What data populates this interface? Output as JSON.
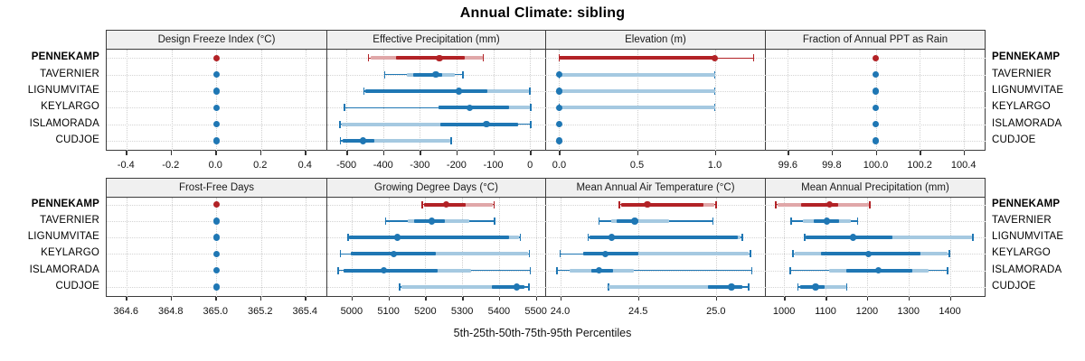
{
  "figure": {
    "title": "Annual Climate: sibling",
    "axis_caption": "5th-25th-50th-75th-95th Percentiles"
  },
  "sites": [
    "PENNEKAMP",
    "TAVERNIER",
    "LIGNUMVITAE",
    "KEYLARGO",
    "ISLAMORADA",
    "CUDJOE"
  ],
  "highlight_site": "PENNEKAMP",
  "colors": {
    "blue": "#1f77b4",
    "blue_light": "#a5c9e1",
    "red": "#b22226",
    "red_light": "#e0a7a8",
    "grid": "#d0d0d0",
    "panel_border": "#3c3c3c",
    "header_bg": "#f0f0f0"
  },
  "chart_data": [
    {
      "type": "dotplot-percentiles",
      "title": "Design Freeze Index (°C)",
      "grid_row": 0,
      "grid_col": 0,
      "xlim": [
        -0.49,
        0.5
      ],
      "ticks": [
        -0.4,
        -0.2,
        0.0,
        0.2,
        0.4
      ],
      "tick_labels": [
        "-0.4",
        "-0.2",
        "0.0",
        "0.2",
        "0.4"
      ],
      "series": [
        {
          "site": "PENNEKAMP",
          "lo": 0,
          "hi": 0,
          "light": null,
          "dark": null,
          "med": 0
        },
        {
          "site": "TAVERNIER",
          "lo": 0,
          "hi": 0,
          "light": null,
          "dark": null,
          "med": 0
        },
        {
          "site": "LIGNUMVITAE",
          "lo": 0,
          "hi": 0,
          "light": null,
          "dark": null,
          "med": 0
        },
        {
          "site": "KEYLARGO",
          "lo": 0,
          "hi": 0,
          "light": null,
          "dark": null,
          "med": 0
        },
        {
          "site": "ISLAMORADA",
          "lo": 0,
          "hi": 0,
          "light": null,
          "dark": null,
          "med": 0
        },
        {
          "site": "CUDJOE",
          "lo": 0,
          "hi": 0,
          "light": null,
          "dark": null,
          "med": 0
        }
      ]
    },
    {
      "type": "dotplot-percentiles",
      "title": "Effective Precipitation (mm)",
      "grid_row": 0,
      "grid_col": 1,
      "xlim": [
        -552,
        44
      ],
      "ticks": [
        -500,
        -400,
        -300,
        -200,
        -100,
        0
      ],
      "tick_labels": [
        "-500",
        "-400",
        "-300",
        "-200",
        "-100",
        "0"
      ],
      "series": [
        {
          "site": "PENNEKAMP",
          "lo": -440,
          "hi": -127,
          "light": [
            -435,
            -128
          ],
          "dark": [
            -365,
            -177
          ],
          "med": -246
        },
        {
          "site": "TAVERNIER",
          "lo": -396,
          "hi": -183,
          "light": [
            -335,
            -205
          ],
          "dark": [
            -318,
            -238
          ],
          "med": -257
        },
        {
          "site": "LIGNUMVITAE",
          "lo": -452,
          "hi": 0,
          "light": [
            -448,
            -2
          ],
          "dark": [
            -448,
            -116
          ],
          "med": -194
        },
        {
          "site": "KEYLARGO",
          "lo": -505,
          "hi": 2,
          "light": [
            -250,
            0
          ],
          "dark": [
            -250,
            -57
          ],
          "med": -164
        },
        {
          "site": "ISLAMORADA",
          "lo": -518,
          "hi": 2,
          "light": [
            -512,
            -33
          ],
          "dark": [
            -243,
            -33
          ],
          "med": -119
        },
        {
          "site": "CUDJOE",
          "lo": -516,
          "hi": -214,
          "light": [
            -511,
            -216
          ],
          "dark": [
            -511,
            -423
          ],
          "med": -455
        }
      ]
    },
    {
      "type": "dotplot-percentiles",
      "title": "Elevation (m)",
      "grid_row": 0,
      "grid_col": 2,
      "xlim": [
        -0.084,
        1.328
      ],
      "ticks": [
        0.0,
        0.5,
        1.0
      ],
      "tick_labels": [
        "0.0",
        "0.5",
        "1.0"
      ],
      "series": [
        {
          "site": "PENNEKAMP",
          "lo": 0,
          "hi": 1.25,
          "light": [
            0,
            1.0
          ],
          "dark": [
            0,
            1.0
          ],
          "med": 1.0
        },
        {
          "site": "TAVERNIER",
          "lo": 0,
          "hi": 1.0,
          "light": [
            0,
            1.0
          ],
          "dark": null,
          "med": 0
        },
        {
          "site": "LIGNUMVITAE",
          "lo": 0,
          "hi": 1.0,
          "light": [
            0,
            1.0
          ],
          "dark": null,
          "med": 0
        },
        {
          "site": "KEYLARGO",
          "lo": 0,
          "hi": 1.0,
          "light": [
            0,
            1.0
          ],
          "dark": null,
          "med": 0
        },
        {
          "site": "ISLAMORADA",
          "lo": 0,
          "hi": 0,
          "light": null,
          "dark": null,
          "med": 0
        },
        {
          "site": "CUDJOE",
          "lo": 0,
          "hi": 0,
          "light": null,
          "dark": null,
          "med": 0
        }
      ]
    },
    {
      "type": "dotplot-percentiles",
      "title": "Fraction of Annual PPT as Rain",
      "grid_row": 0,
      "grid_col": 3,
      "xlim": [
        99.5,
        100.5
      ],
      "ticks": [
        99.6,
        99.8,
        100.0,
        100.2,
        100.4
      ],
      "tick_labels": [
        "99.6",
        "99.8",
        "100.0",
        "100.2",
        "100.4"
      ],
      "series": [
        {
          "site": "PENNEKAMP",
          "lo": 100,
          "hi": 100,
          "light": null,
          "dark": null,
          "med": 100
        },
        {
          "site": "TAVERNIER",
          "lo": 100,
          "hi": 100,
          "light": null,
          "dark": null,
          "med": 100
        },
        {
          "site": "LIGNUMVITAE",
          "lo": 100,
          "hi": 100,
          "light": null,
          "dark": null,
          "med": 100
        },
        {
          "site": "KEYLARGO",
          "lo": 100,
          "hi": 100,
          "light": null,
          "dark": null,
          "med": 100
        },
        {
          "site": "ISLAMORADA",
          "lo": 100,
          "hi": 100,
          "light": null,
          "dark": null,
          "med": 100
        },
        {
          "site": "CUDJOE",
          "lo": 100,
          "hi": 100,
          "light": null,
          "dark": null,
          "med": 100
        }
      ]
    },
    {
      "type": "dotplot-percentiles",
      "title": "Frost-Free Days",
      "grid_row": 1,
      "grid_col": 0,
      "xlim": [
        364.51,
        365.5
      ],
      "ticks": [
        364.6,
        364.8,
        365.0,
        365.2,
        365.4
      ],
      "tick_labels": [
        "364.6",
        "364.8",
        "365.0",
        "365.2",
        "365.4"
      ],
      "series": [
        {
          "site": "PENNEKAMP",
          "lo": 365,
          "hi": 365,
          "light": null,
          "dark": null,
          "med": 365
        },
        {
          "site": "TAVERNIER",
          "lo": 365,
          "hi": 365,
          "light": null,
          "dark": null,
          "med": 365
        },
        {
          "site": "LIGNUMVITAE",
          "lo": 365,
          "hi": 365,
          "light": null,
          "dark": null,
          "med": 365
        },
        {
          "site": "KEYLARGO",
          "lo": 365,
          "hi": 365,
          "light": null,
          "dark": null,
          "med": 365
        },
        {
          "site": "ISLAMORADA",
          "lo": 365,
          "hi": 365,
          "light": null,
          "dark": null,
          "med": 365
        },
        {
          "site": "CUDJOE",
          "lo": 365,
          "hi": 365,
          "light": null,
          "dark": null,
          "med": 365
        }
      ]
    },
    {
      "type": "dotplot-percentiles",
      "title": "Growing Degree Days (°C)",
      "grid_row": 1,
      "grid_col": 1,
      "xlim": [
        4934,
        5528
      ],
      "ticks": [
        5000,
        5100,
        5200,
        5300,
        5400,
        5500
      ],
      "tick_labels": [
        "5000",
        "5100",
        "5200",
        "5300",
        "5400",
        "5500"
      ],
      "series": [
        {
          "site": "PENNEKAMP",
          "lo": 5192,
          "hi": 5387,
          "light": [
            5196,
            5383
          ],
          "dark": [
            5196,
            5310
          ],
          "med": 5257
        },
        {
          "site": "TAVERNIER",
          "lo": 5092,
          "hi": 5388,
          "light": [
            5153,
            5319
          ],
          "dark": [
            5170,
            5252
          ],
          "med": 5217
        },
        {
          "site": "LIGNUMVITAE",
          "lo": 4990,
          "hi": 5458,
          "light": [
            4994,
            5455
          ],
          "dark": [
            4994,
            5428
          ],
          "med": 5124
        },
        {
          "site": "KEYLARGO",
          "lo": 4970,
          "hi": 5483,
          "light": [
            4998,
            5480
          ],
          "dark": [
            4998,
            5229
          ],
          "med": 5114
        },
        {
          "site": "ISLAMORADA",
          "lo": 4964,
          "hi": 5485,
          "light": [
            4978,
            5325
          ],
          "dark": [
            4978,
            5234
          ],
          "med": 5088
        },
        {
          "site": "CUDJOE",
          "lo": 5130,
          "hi": 5481,
          "light": [
            5136,
            5469
          ],
          "dark": [
            5380,
            5469
          ],
          "med": 5448
        }
      ]
    },
    {
      "type": "dotplot-percentiles",
      "title": "Mean Annual Air Temperature (°C)",
      "grid_row": 1,
      "grid_col": 2,
      "xlim": [
        23.91,
        25.32
      ],
      "ticks": [
        24.0,
        24.5,
        25.0
      ],
      "tick_labels": [
        "24.0",
        "24.5",
        "25.0"
      ],
      "series": [
        {
          "site": "PENNEKAMP",
          "lo": 24.38,
          "hi": 25.0,
          "light": [
            24.39,
            24.99
          ],
          "dark": [
            24.39,
            24.92
          ],
          "med": 24.56
        },
        {
          "site": "TAVERNIER",
          "lo": 24.25,
          "hi": 24.98,
          "light": [
            24.33,
            24.7
          ],
          "dark": [
            24.36,
            24.5
          ],
          "med": 24.48
        },
        {
          "site": "LIGNUMVITAE",
          "lo": 24.18,
          "hi": 25.17,
          "light": [
            24.19,
            25.16
          ],
          "dark": [
            24.19,
            25.14
          ],
          "med": 24.33
        },
        {
          "site": "KEYLARGO",
          "lo": 24.0,
          "hi": 25.22,
          "light": [
            24.15,
            25.21
          ],
          "dark": [
            24.15,
            24.5
          ],
          "med": 24.29
        },
        {
          "site": "ISLAMORADA",
          "lo": 23.98,
          "hi": 25.23,
          "light": [
            24.06,
            24.47
          ],
          "dark": [
            24.2,
            24.34
          ],
          "med": 24.25
        },
        {
          "site": "CUDJOE",
          "lo": 24.31,
          "hi": 25.21,
          "light": [
            24.31,
            25.17
          ],
          "dark": [
            24.95,
            25.17
          ],
          "med": 25.1
        }
      ]
    },
    {
      "type": "dotplot-percentiles",
      "title": "Mean Annual Precipitation (mm)",
      "grid_row": 1,
      "grid_col": 3,
      "xlim": [
        956,
        1486
      ],
      "ticks": [
        1000,
        1100,
        1200,
        1300,
        1400
      ],
      "tick_labels": [
        "1000",
        "1100",
        "1200",
        "1300",
        "1400"
      ],
      "series": [
        {
          "site": "PENNEKAMP",
          "lo": 980,
          "hi": 1207,
          "light": [
            985,
            1205
          ],
          "dark": [
            1040,
            1130
          ],
          "med": 1110
        },
        {
          "site": "TAVERNIER",
          "lo": 1017,
          "hi": 1177,
          "light": [
            1046,
            1162
          ],
          "dark": [
            1071,
            1133
          ],
          "med": 1103
        },
        {
          "site": "LIGNUMVITAE",
          "lo": 1050,
          "hi": 1456,
          "light": [
            1053,
            1453
          ],
          "dark": [
            1053,
            1261
          ],
          "med": 1167
        },
        {
          "site": "KEYLARGO",
          "lo": 1021,
          "hi": 1399,
          "light": [
            1025,
            1395
          ],
          "dark": [
            1090,
            1330
          ],
          "med": 1204
        },
        {
          "site": "ISLAMORADA",
          "lo": 1015,
          "hi": 1394,
          "light": [
            1108,
            1348
          ],
          "dark": [
            1150,
            1310
          ],
          "med": 1228
        },
        {
          "site": "CUDJOE",
          "lo": 1033,
          "hi": 1151,
          "light": [
            1039,
            1150
          ],
          "dark": [
            1039,
            1098
          ],
          "med": 1076
        }
      ]
    }
  ]
}
